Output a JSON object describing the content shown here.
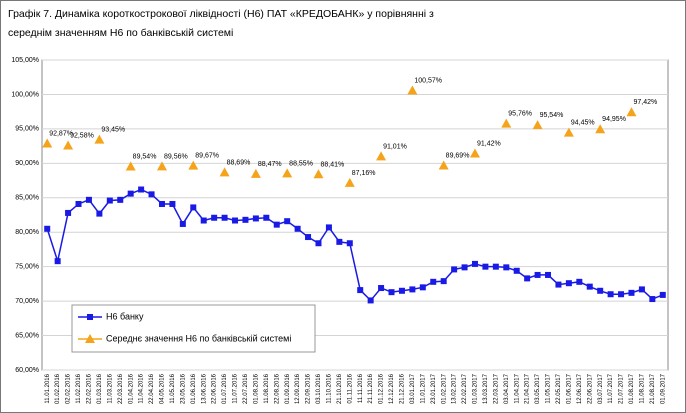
{
  "chart_data": {
    "type": "line",
    "title_lines": [
      "Графік 7.  Динаміка короткострокової ліквідності (Н6) ПАТ «КРЕДОБАНК»  у порівнянні з",
      "середнім значенням Н6 по банківській системі"
    ],
    "categories": [
      "11.01.2016",
      "01.02.2016",
      "02.02.2016",
      "11.02.2016",
      "22.02.2016",
      "01.03.2016",
      "11.03.2016",
      "22.03.2016",
      "01.04.2016",
      "11.04.2016",
      "22.04.2016",
      "04.05.2016",
      "11.05.2016",
      "23.05.2016",
      "01.06.2016",
      "13.06.2016",
      "22.06.2016",
      "01.07.2016",
      "11.07.2016",
      "22.07.2016",
      "01.08.2016",
      "11.08.2016",
      "22.08.2016",
      "01.09.2016",
      "12.09.2016",
      "22.09.2016",
      "03.10.2016",
      "11.10.2016",
      "21.10.2016",
      "01.11.2016",
      "11.11.2016",
      "21.11.2016",
      "01.12.2016",
      "12.12.2016",
      "21.12.2016",
      "03.01.2017",
      "11.01.2017",
      "23.01.2017",
      "01.02.2017",
      "13.02.2017",
      "22.02.2017",
      "01.03.2017",
      "13.03.2017",
      "22.03.2017",
      "03.04.2017",
      "11.04.2017",
      "21.04.2017",
      "03.05.2017",
      "11.05.2017",
      "22.05.2017",
      "01.06.2017",
      "12.06.2017",
      "22.06.2017",
      "03.07.2017",
      "11.07.2017",
      "21.07.2017",
      "01.08.2017",
      "11.08.2017",
      "21.08.2017",
      "01.09.2017"
    ],
    "series": [
      {
        "name": "Н6 банку",
        "color": "#1a1ae6",
        "marker": "square",
        "line": true,
        "values": [
          80.5,
          75.8,
          82.8,
          84.1,
          84.7,
          82.7,
          84.6,
          84.7,
          85.6,
          86.2,
          85.5,
          84.1,
          84.1,
          81.2,
          83.6,
          81.7,
          82.1,
          82.1,
          81.7,
          81.8,
          82.0,
          82.1,
          81.1,
          81.6,
          80.5,
          79.3,
          78.4,
          80.7,
          78.6,
          78.4,
          71.6,
          70.1,
          71.9,
          71.3,
          71.5,
          71.7,
          72.0,
          72.8,
          72.9,
          74.6,
          74.9,
          75.4,
          75.0,
          75.0,
          74.9,
          74.4,
          73.3,
          73.8,
          73.8,
          72.4,
          72.6,
          72.8,
          72.1,
          71.5,
          71.0,
          71.0,
          71.2,
          71.7,
          70.3,
          70.9
        ]
      },
      {
        "name": "Середнє значення Н6 по банківській системі",
        "color": "#f5a31a",
        "marker": "triangle",
        "line": false,
        "values": [
          92.87,
          null,
          92.58,
          null,
          null,
          93.45,
          null,
          null,
          89.54,
          null,
          null,
          89.56,
          null,
          null,
          89.67,
          null,
          null,
          88.69,
          null,
          null,
          88.47,
          null,
          null,
          88.55,
          null,
          null,
          88.41,
          null,
          null,
          87.16,
          null,
          null,
          91.01,
          null,
          null,
          100.57,
          null,
          null,
          89.69,
          null,
          null,
          91.42,
          null,
          null,
          95.76,
          null,
          null,
          95.54,
          null,
          null,
          94.45,
          null,
          null,
          94.95,
          null,
          null,
          97.42,
          null,
          null,
          null
        ],
        "value_labels": [
          "92,87%",
          null,
          "92,58%",
          null,
          null,
          "93,45%",
          null,
          null,
          "89,54%",
          null,
          null,
          "89,56%",
          null,
          null,
          "89,67%",
          null,
          null,
          "88,69%",
          null,
          null,
          "88,47%",
          null,
          null,
          "88,55%",
          null,
          null,
          "88,41%",
          null,
          null,
          "87,16%",
          null,
          null,
          "91,01%",
          null,
          null,
          "100,57%",
          null,
          null,
          "89,69%",
          null,
          null,
          "91,42%",
          null,
          null,
          "95,76%",
          null,
          null,
          "95,54%",
          null,
          null,
          "94,45%",
          null,
          null,
          "94,95%",
          null,
          null,
          "97,42%",
          null,
          null,
          null
        ]
      }
    ],
    "ylim": [
      60,
      105
    ],
    "yticks": [
      {
        "value": 60,
        "label": "60,00%"
      },
      {
        "value": 65,
        "label": "65,00%"
      },
      {
        "value": 70,
        "label": "70,00%"
      },
      {
        "value": 75,
        "label": "75,00%"
      },
      {
        "value": 80,
        "label": "80,00%"
      },
      {
        "value": 85,
        "label": "85,00%"
      },
      {
        "value": 90,
        "label": "90,00%"
      },
      {
        "value": 95,
        "label": "95,00%"
      },
      {
        "value": 100,
        "label": "100,00%"
      },
      {
        "value": 105,
        "label": "105,00%"
      }
    ],
    "grid": true,
    "legend": "lower left"
  }
}
